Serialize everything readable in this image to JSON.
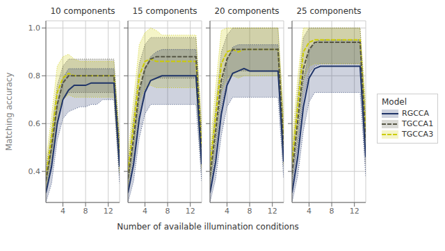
{
  "chart_data": [
    {
      "type": "line",
      "title": "10 components",
      "xlabel": "Number of available illumination conditions",
      "ylabel": "Matching accuracy",
      "x": [
        1,
        2,
        3,
        4,
        5,
        6,
        7,
        8,
        9,
        10,
        11,
        12,
        13,
        14
      ],
      "xlim": [
        1,
        14
      ],
      "ylim": [
        0.27,
        1.03
      ],
      "xticks": [
        4,
        8,
        12
      ],
      "yticks": [
        0.4,
        0.6,
        0.8,
        {
          "value": 1.0,
          "label": "1.0"
        }
      ],
      "grid": true,
      "series": [
        {
          "name": "RGCCA",
          "color": "#1f3468",
          "line_style": "solid",
          "values": [
            0.31,
            0.42,
            0.6,
            0.7,
            0.74,
            0.76,
            0.76,
            0.76,
            0.77,
            0.77,
            0.77,
            0.77,
            0.77,
            0.42
          ],
          "lower": [
            0.27,
            0.35,
            0.53,
            0.62,
            0.65,
            0.66,
            0.67,
            0.67,
            0.68,
            0.68,
            0.7,
            0.7,
            0.7,
            0.35
          ],
          "upper": [
            0.36,
            0.5,
            0.68,
            0.79,
            0.83,
            0.83,
            0.83,
            0.83,
            0.83,
            0.83,
            0.83,
            0.83,
            0.83,
            0.5
          ]
        },
        {
          "name": "TGCCA1",
          "color": "#555544",
          "line_style": "dashed",
          "values": [
            0.36,
            0.5,
            0.68,
            0.77,
            0.8,
            0.8,
            0.8,
            0.8,
            0.8,
            0.8,
            0.8,
            0.8,
            0.8,
            0.45
          ],
          "lower": [
            0.32,
            0.44,
            0.61,
            0.7,
            0.73,
            0.73,
            0.73,
            0.73,
            0.73,
            0.73,
            0.73,
            0.73,
            0.73,
            0.38
          ],
          "upper": [
            0.41,
            0.57,
            0.76,
            0.84,
            0.87,
            0.87,
            0.87,
            0.87,
            0.87,
            0.87,
            0.87,
            0.87,
            0.87,
            0.52
          ]
        },
        {
          "name": "TGCCA3",
          "color": "#cccc00",
          "line_style": "dashed",
          "values": [
            0.38,
            0.54,
            0.73,
            0.79,
            0.81,
            0.8,
            0.8,
            0.8,
            0.8,
            0.8,
            0.8,
            0.8,
            0.8,
            0.46
          ],
          "lower": [
            0.33,
            0.47,
            0.64,
            0.7,
            0.72,
            0.71,
            0.71,
            0.71,
            0.71,
            0.71,
            0.71,
            0.71,
            0.71,
            0.39
          ],
          "upper": [
            0.44,
            0.63,
            0.84,
            0.88,
            0.89,
            0.87,
            0.86,
            0.86,
            0.86,
            0.86,
            0.86,
            0.86,
            0.86,
            0.54
          ]
        }
      ]
    },
    {
      "type": "line",
      "title": "15 components",
      "tick_labels": "x",
      "x": [
        1,
        2,
        3,
        4,
        5,
        6,
        7,
        8,
        9,
        10,
        11,
        12,
        13,
        14
      ],
      "xlim": [
        1,
        14
      ],
      "ylim": [
        0.27,
        1.03
      ],
      "xticks": [
        4,
        8,
        12
      ],
      "yticks": [
        0.4,
        0.6,
        0.8,
        {
          "value": 1.0,
          "label": "1.0"
        }
      ],
      "grid": true,
      "series": [
        {
          "name": "RGCCA",
          "color": "#1f3468",
          "line_style": "solid",
          "values": [
            0.31,
            0.43,
            0.62,
            0.73,
            0.78,
            0.79,
            0.8,
            0.8,
            0.8,
            0.8,
            0.8,
            0.8,
            0.8,
            0.43
          ],
          "lower": [
            0.27,
            0.36,
            0.54,
            0.64,
            0.68,
            0.68,
            0.68,
            0.68,
            0.68,
            0.68,
            0.68,
            0.68,
            0.68,
            0.36
          ],
          "upper": [
            0.36,
            0.51,
            0.71,
            0.83,
            0.88,
            0.9,
            0.91,
            0.91,
            0.91,
            0.91,
            0.91,
            0.91,
            0.91,
            0.51
          ]
        },
        {
          "name": "TGCCA1",
          "color": "#555544",
          "line_style": "dashed",
          "values": [
            0.37,
            0.54,
            0.74,
            0.83,
            0.87,
            0.88,
            0.88,
            0.88,
            0.88,
            0.88,
            0.88,
            0.88,
            0.88,
            0.48
          ],
          "lower": [
            0.32,
            0.46,
            0.64,
            0.74,
            0.78,
            0.79,
            0.79,
            0.79,
            0.79,
            0.79,
            0.79,
            0.79,
            0.79,
            0.4
          ],
          "upper": [
            0.43,
            0.63,
            0.85,
            0.93,
            0.96,
            0.96,
            0.96,
            0.96,
            0.96,
            0.96,
            0.96,
            0.96,
            0.96,
            0.57
          ]
        },
        {
          "name": "TGCCA3",
          "color": "#cccc00",
          "line_style": "dashed",
          "values": [
            0.4,
            0.59,
            0.8,
            0.86,
            0.87,
            0.86,
            0.86,
            0.86,
            0.86,
            0.86,
            0.86,
            0.86,
            0.86,
            0.5
          ],
          "lower": [
            0.34,
            0.5,
            0.69,
            0.75,
            0.76,
            0.75,
            0.75,
            0.75,
            0.75,
            0.75,
            0.75,
            0.75,
            0.75,
            0.41
          ],
          "upper": [
            0.47,
            0.7,
            0.93,
            0.98,
            1.0,
            0.99,
            0.97,
            0.97,
            0.97,
            0.97,
            0.97,
            0.97,
            0.97,
            0.6
          ]
        }
      ]
    },
    {
      "type": "line",
      "title": "20 components",
      "tick_labels": "x",
      "x": [
        1,
        2,
        3,
        4,
        5,
        6,
        7,
        8,
        9,
        10,
        11,
        12,
        13,
        14
      ],
      "xlim": [
        1,
        14
      ],
      "ylim": [
        0.27,
        1.03
      ],
      "xticks": [
        4,
        8,
        12
      ],
      "yticks": [
        0.4,
        0.6,
        0.8,
        {
          "value": 1.0,
          "label": "1.0"
        }
      ],
      "grid": true,
      "series": [
        {
          "name": "RGCCA",
          "color": "#1f3468",
          "line_style": "solid",
          "values": [
            0.31,
            0.44,
            0.64,
            0.76,
            0.81,
            0.82,
            0.83,
            0.82,
            0.82,
            0.82,
            0.82,
            0.82,
            0.82,
            0.44
          ],
          "lower": [
            0.27,
            0.37,
            0.55,
            0.67,
            0.71,
            0.71,
            0.71,
            0.71,
            0.71,
            0.71,
            0.71,
            0.71,
            0.71,
            0.37
          ],
          "upper": [
            0.36,
            0.52,
            0.74,
            0.86,
            0.92,
            0.93,
            0.93,
            0.93,
            0.93,
            0.93,
            0.93,
            0.93,
            0.93,
            0.52
          ]
        },
        {
          "name": "TGCCA1",
          "color": "#555544",
          "line_style": "dashed",
          "values": [
            0.38,
            0.57,
            0.78,
            0.87,
            0.91,
            0.91,
            0.91,
            0.91,
            0.91,
            0.91,
            0.91,
            0.91,
            0.91,
            0.5
          ],
          "lower": [
            0.32,
            0.48,
            0.67,
            0.77,
            0.81,
            0.82,
            0.82,
            0.82,
            0.82,
            0.82,
            0.82,
            0.82,
            0.82,
            0.42
          ],
          "upper": [
            0.45,
            0.67,
            0.9,
            0.97,
            1.0,
            1.0,
            1.0,
            1.0,
            1.0,
            1.0,
            1.0,
            1.0,
            1.0,
            0.59
          ]
        },
        {
          "name": "TGCCA3",
          "color": "#cccc00",
          "line_style": "dashed",
          "values": [
            0.42,
            0.63,
            0.85,
            0.9,
            0.91,
            0.9,
            0.91,
            0.91,
            0.91,
            0.91,
            0.91,
            0.91,
            0.91,
            0.53
          ],
          "lower": [
            0.35,
            0.53,
            0.73,
            0.79,
            0.8,
            0.79,
            0.8,
            0.8,
            0.8,
            0.8,
            0.8,
            0.8,
            0.8,
            0.43
          ],
          "upper": [
            0.5,
            0.75,
            0.99,
            1.0,
            1.0,
            1.0,
            1.0,
            1.0,
            1.0,
            1.0,
            1.0,
            1.0,
            1.0,
            0.63
          ]
        }
      ]
    },
    {
      "type": "line",
      "title": "25 components",
      "tick_labels": "x",
      "legend": "right",
      "legend_title": "Model",
      "x": [
        1,
        2,
        3,
        4,
        5,
        6,
        7,
        8,
        9,
        10,
        11,
        12,
        13,
        14
      ],
      "xlim": [
        1,
        14
      ],
      "ylim": [
        0.27,
        1.03
      ],
      "xticks": [
        4,
        8,
        12
      ],
      "yticks": [
        0.4,
        0.6,
        0.8,
        {
          "value": 1.0,
          "label": "1.0"
        }
      ],
      "grid": true,
      "series": [
        {
          "name": "RGCCA",
          "color": "#1f3468",
          "line_style": "solid",
          "values": [
            0.31,
            0.46,
            0.67,
            0.79,
            0.83,
            0.84,
            0.84,
            0.84,
            0.84,
            0.84,
            0.84,
            0.84,
            0.84,
            0.46
          ],
          "lower": [
            0.27,
            0.38,
            0.57,
            0.69,
            0.73,
            0.73,
            0.73,
            0.73,
            0.73,
            0.73,
            0.73,
            0.73,
            0.73,
            0.38
          ],
          "upper": [
            0.36,
            0.55,
            0.78,
            0.9,
            0.94,
            0.95,
            0.95,
            0.95,
            0.95,
            0.95,
            0.95,
            0.95,
            0.95,
            0.55
          ]
        },
        {
          "name": "TGCCA1",
          "color": "#555544",
          "line_style": "dashed",
          "values": [
            0.39,
            0.61,
            0.83,
            0.91,
            0.94,
            0.94,
            0.94,
            0.94,
            0.94,
            0.94,
            0.94,
            0.94,
            0.94,
            0.53
          ],
          "lower": [
            0.33,
            0.51,
            0.71,
            0.81,
            0.84,
            0.85,
            0.85,
            0.85,
            0.85,
            0.85,
            0.85,
            0.85,
            0.85,
            0.43
          ],
          "upper": [
            0.46,
            0.72,
            0.96,
            1.0,
            1.0,
            1.0,
            1.0,
            1.0,
            1.0,
            1.0,
            1.0,
            1.0,
            1.0,
            0.63
          ]
        },
        {
          "name": "TGCCA3",
          "color": "#cccc00",
          "line_style": "dashed",
          "values": [
            0.44,
            0.67,
            0.9,
            0.94,
            0.95,
            0.95,
            0.95,
            0.95,
            0.95,
            0.95,
            0.95,
            0.95,
            0.95,
            0.57
          ],
          "lower": [
            0.37,
            0.57,
            0.78,
            0.84,
            0.85,
            0.85,
            0.85,
            0.85,
            0.85,
            0.85,
            0.85,
            0.85,
            0.85,
            0.46
          ],
          "upper": [
            0.52,
            0.79,
            1.0,
            1.0,
            1.0,
            1.0,
            1.0,
            1.0,
            1.0,
            1.0,
            1.0,
            1.0,
            1.0,
            0.68
          ]
        }
      ]
    }
  ]
}
